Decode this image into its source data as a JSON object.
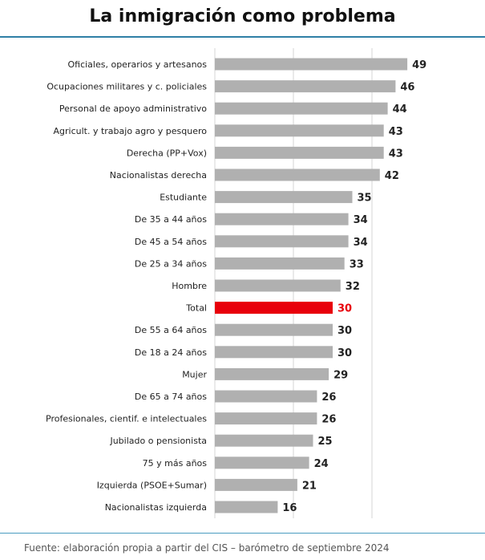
{
  "title": "La inmigración como problema",
  "source": "Fuente: elaboración propia a partir del CIS – barómetro de septiembre 2024",
  "colors": {
    "bar": "#b0b0b0",
    "highlight": "#e8000b",
    "accent_rule": "#2f7fa6"
  },
  "chart_data": {
    "type": "bar",
    "orientation": "horizontal",
    "title": "La inmigración como problema",
    "categories": [
      "Oficiales, operarios y artesanos",
      "Ocupaciones militares y c. policiales",
      "Personal de apoyo administrativo",
      "Agricult. y trabajo agro y pesquero",
      "Derecha (PP+Vox)",
      "Nacionalistas derecha",
      "Estudiante",
      "De 35 a 44 años",
      "De 45 a 54 años",
      "De 25 a 34 años",
      "Hombre",
      "Total",
      "De 55 a 64 años",
      "De 18 a 24 años",
      "Mujer",
      "De 65 a 74 años",
      "Profesionales, cientif. e intelectuales",
      "Jubilado o pensionista",
      "75 y más años",
      "Izquierda (PSOE+Sumar)",
      "Nacionalistas izquierda"
    ],
    "values": [
      49,
      46,
      44,
      43,
      43,
      42,
      35,
      34,
      34,
      33,
      32,
      30,
      30,
      30,
      29,
      26,
      26,
      25,
      24,
      21,
      16
    ],
    "value_labels": [
      "49",
      "46",
      "44",
      "43",
      "43",
      "42",
      "35",
      "34",
      "34",
      "33",
      "32",
      "30",
      "30",
      "30",
      "29",
      "26",
      "26",
      "25",
      "24",
      "21",
      "16"
    ],
    "highlight_category": "Total",
    "xlim": [
      0,
      60
    ],
    "grid": true,
    "legend": "none"
  }
}
